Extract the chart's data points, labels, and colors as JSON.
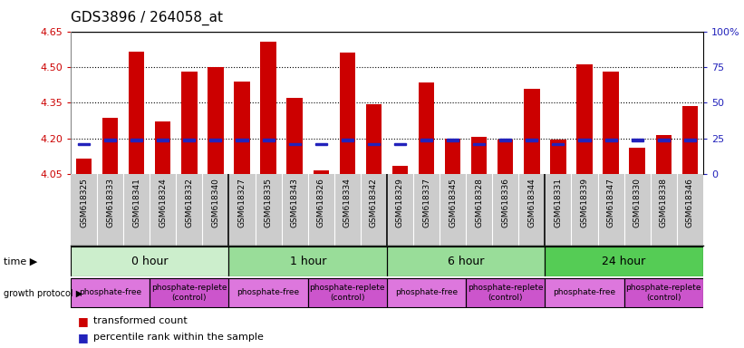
{
  "title": "GDS3896 / 264058_at",
  "samples": [
    "GSM618325",
    "GSM618333",
    "GSM618341",
    "GSM618324",
    "GSM618332",
    "GSM618340",
    "GSM618327",
    "GSM618335",
    "GSM618343",
    "GSM618326",
    "GSM618334",
    "GSM618342",
    "GSM618329",
    "GSM618337",
    "GSM618345",
    "GSM618328",
    "GSM618336",
    "GSM618344",
    "GSM618331",
    "GSM618339",
    "GSM618347",
    "GSM618330",
    "GSM618338",
    "GSM618346"
  ],
  "red_bar_top": [
    4.115,
    4.285,
    4.565,
    4.27,
    4.48,
    4.5,
    4.44,
    4.605,
    4.37,
    4.065,
    4.56,
    4.345,
    4.085,
    4.435,
    4.2,
    4.205,
    4.195,
    4.41,
    4.195,
    4.51,
    4.48,
    4.16,
    4.215,
    4.335
  ],
  "blue_sq_val": [
    4.175,
    4.193,
    4.193,
    4.193,
    4.193,
    4.193,
    4.193,
    4.193,
    4.175,
    4.175,
    4.193,
    4.175,
    4.175,
    4.193,
    4.193,
    4.175,
    4.193,
    4.193,
    4.175,
    4.193,
    4.193,
    4.193,
    4.193,
    4.193
  ],
  "ymin": 4.05,
  "ymax": 4.65,
  "yticks_left": [
    4.05,
    4.2,
    4.35,
    4.5,
    4.65
  ],
  "yticks_right_pct": [
    0,
    25,
    50,
    75,
    100
  ],
  "yticks_right_labels": [
    "0",
    "25",
    "50",
    "75",
    "100%"
  ],
  "grid_vals": [
    4.2,
    4.35,
    4.5
  ],
  "bar_color": "#cc0000",
  "blue_color": "#2222bb",
  "time_groups": [
    {
      "label": "0 hour",
      "start": 0,
      "end": 6,
      "color": "#cceecc"
    },
    {
      "label": "1 hour",
      "start": 6,
      "end": 12,
      "color": "#99dd99"
    },
    {
      "label": "6 hour",
      "start": 12,
      "end": 18,
      "color": "#99dd99"
    },
    {
      "label": "24 hour",
      "start": 18,
      "end": 24,
      "color": "#55cc55"
    }
  ],
  "protocol_groups": [
    {
      "label": "phosphate-free",
      "start": 0,
      "end": 3,
      "color": "#dd77dd"
    },
    {
      "label": "phosphate-replete\n(control)",
      "start": 3,
      "end": 6,
      "color": "#cc55cc"
    },
    {
      "label": "phosphate-free",
      "start": 6,
      "end": 9,
      "color": "#dd77dd"
    },
    {
      "label": "phosphate-replete\n(control)",
      "start": 9,
      "end": 12,
      "color": "#cc55cc"
    },
    {
      "label": "phosphate-free",
      "start": 12,
      "end": 15,
      "color": "#dd77dd"
    },
    {
      "label": "phosphate-replete\n(control)",
      "start": 15,
      "end": 18,
      "color": "#cc55cc"
    },
    {
      "label": "phosphate-free",
      "start": 18,
      "end": 21,
      "color": "#dd77dd"
    },
    {
      "label": "phosphate-replete\n(control)",
      "start": 21,
      "end": 24,
      "color": "#cc55cc"
    }
  ],
  "bg_color": "#ffffff",
  "label_color_red": "#cc0000",
  "label_color_blue": "#2222bb",
  "label_bg": "#cccccc"
}
